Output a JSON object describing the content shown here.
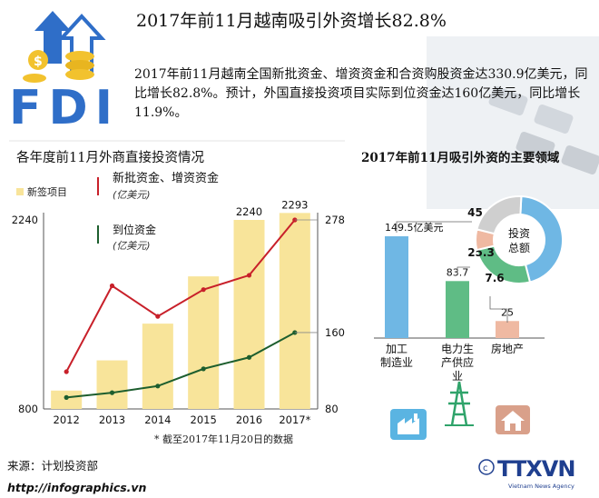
{
  "title": "2017年前11月越南吸引外资增长82.8%",
  "intro": "2017年前11月越南全国新批资金、增资资金和合资购股资金达330.9亿美元，同比增长82.8%。预计，外国直接投资项目实际到位资金达160亿美元，同比增长11.9%。",
  "logo": {
    "text": "FDI"
  },
  "left_section_title": "各年度前11月外商直接投资情况",
  "right_section_title": "2017年前11月吸引外资的主要领域",
  "footnote": "* 截至2017年11月20日的数据",
  "source": "来源：计划投资部",
  "url": "http://infographics.vn",
  "brand": {
    "name": "TTXVN",
    "subtitle": "Vietnam News Agency"
  },
  "colors": {
    "bar": "#f8e49a",
    "red_line": "#c8202a",
    "green_line": "#1d5e2e",
    "blue": "#6fb7e4",
    "green": "#5fbc85",
    "salmon": "#efb9a2",
    "grey": "#cfcfcf"
  },
  "chart_data": [
    {
      "type": "bar+line",
      "x": [
        "2012",
        "2013",
        "2014",
        "2015",
        "2016",
        "2017*"
      ],
      "series": [
        {
          "name": "新签项目",
          "kind": "bar",
          "axis": "left",
          "values": [
            940,
            1170,
            1450,
            1810,
            2240,
            2293
          ]
        },
        {
          "name": "新批资金、增资资金",
          "unit": "(亿美元)",
          "kind": "line",
          "axis": "right",
          "values": [
            119,
            209,
            177,
            205,
            220,
            278
          ]
        },
        {
          "name": "到位资金",
          "unit": "(亿美元)",
          "kind": "line",
          "axis": "right",
          "values": [
            92,
            97,
            104,
            122,
            134,
            160
          ]
        }
      ],
      "y_left": {
        "min": 800,
        "max": 2240,
        "tick_labels": [
          "800",
          "2240"
        ]
      },
      "y_right": {
        "min": 80,
        "max": 278,
        "tick_labels": [
          "80",
          "160",
          "278"
        ]
      },
      "bar_labels": [
        "2240",
        "2293"
      ]
    },
    {
      "type": "bar",
      "categories": [
        "加工制造业",
        "电力生产供应业",
        "房地产"
      ],
      "values": [
        149.5,
        83.7,
        25
      ],
      "value_labels": [
        "149.5亿美元",
        "83.7",
        "25"
      ],
      "category_labels": [
        [
          "加工",
          "制造业"
        ],
        [
          "电力生",
          "产供应",
          "业"
        ],
        [
          "房地产"
        ]
      ]
    },
    {
      "type": "pie",
      "style": "donut",
      "center_label": [
        "投资",
        "总额"
      ],
      "slices": [
        {
          "value": 45.2,
          "label": "45.2%",
          "color": "#6fb7e4"
        },
        {
          "value": 25.3,
          "label": "25.3",
          "color": "#5fbc85"
        },
        {
          "value": 7.6,
          "label": "7.6",
          "color": "#efb9a2"
        },
        {
          "value": 21.9,
          "label": "",
          "color": "#cfcfcf"
        }
      ]
    }
  ]
}
